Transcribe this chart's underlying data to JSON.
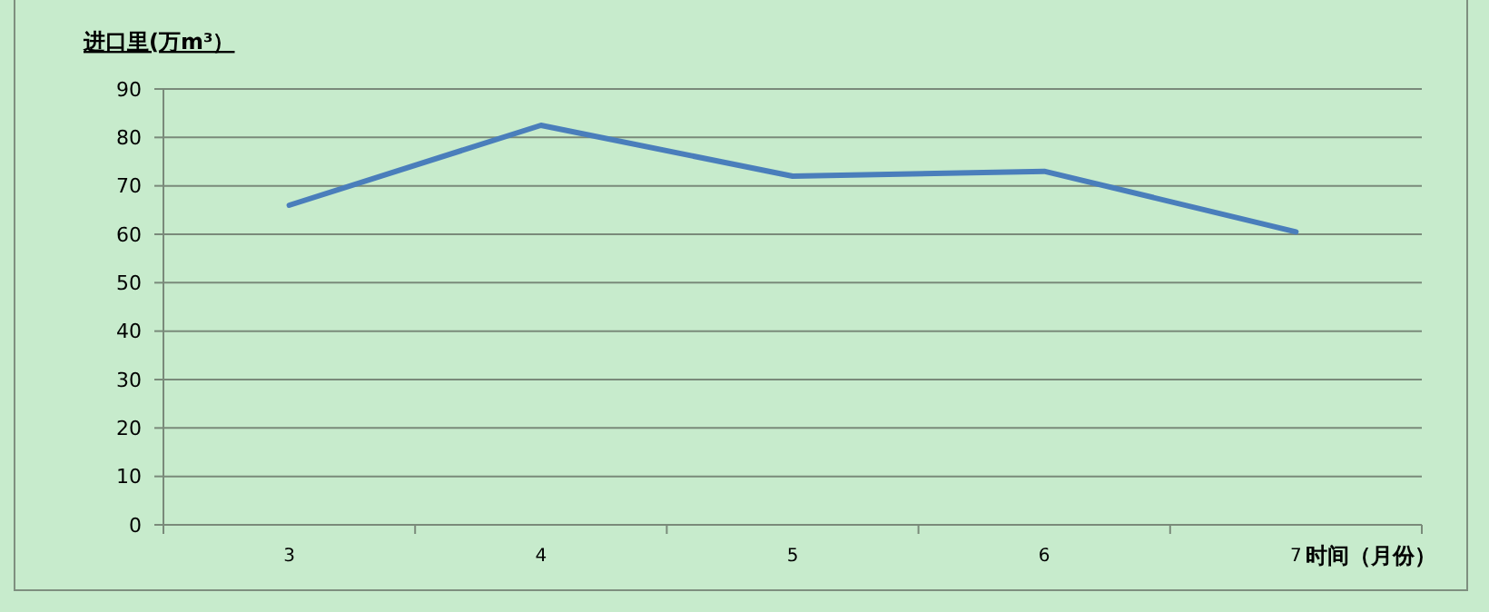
{
  "chart_data": {
    "type": "line",
    "ylabel": "进口里(万m³）",
    "xlabel": "时间（月份）",
    "categories": [
      "3",
      "4",
      "5",
      "6",
      "7"
    ],
    "series": [
      {
        "color": "#4a7ebb",
        "values": [
          66,
          82.5,
          72,
          73,
          60.5
        ]
      }
    ],
    "ylim": [
      0,
      90
    ],
    "yticks": [
      0,
      10,
      20,
      30,
      40,
      50,
      60,
      70,
      80,
      90
    ],
    "grid": "y",
    "marker": "none",
    "line_style": "solid"
  }
}
